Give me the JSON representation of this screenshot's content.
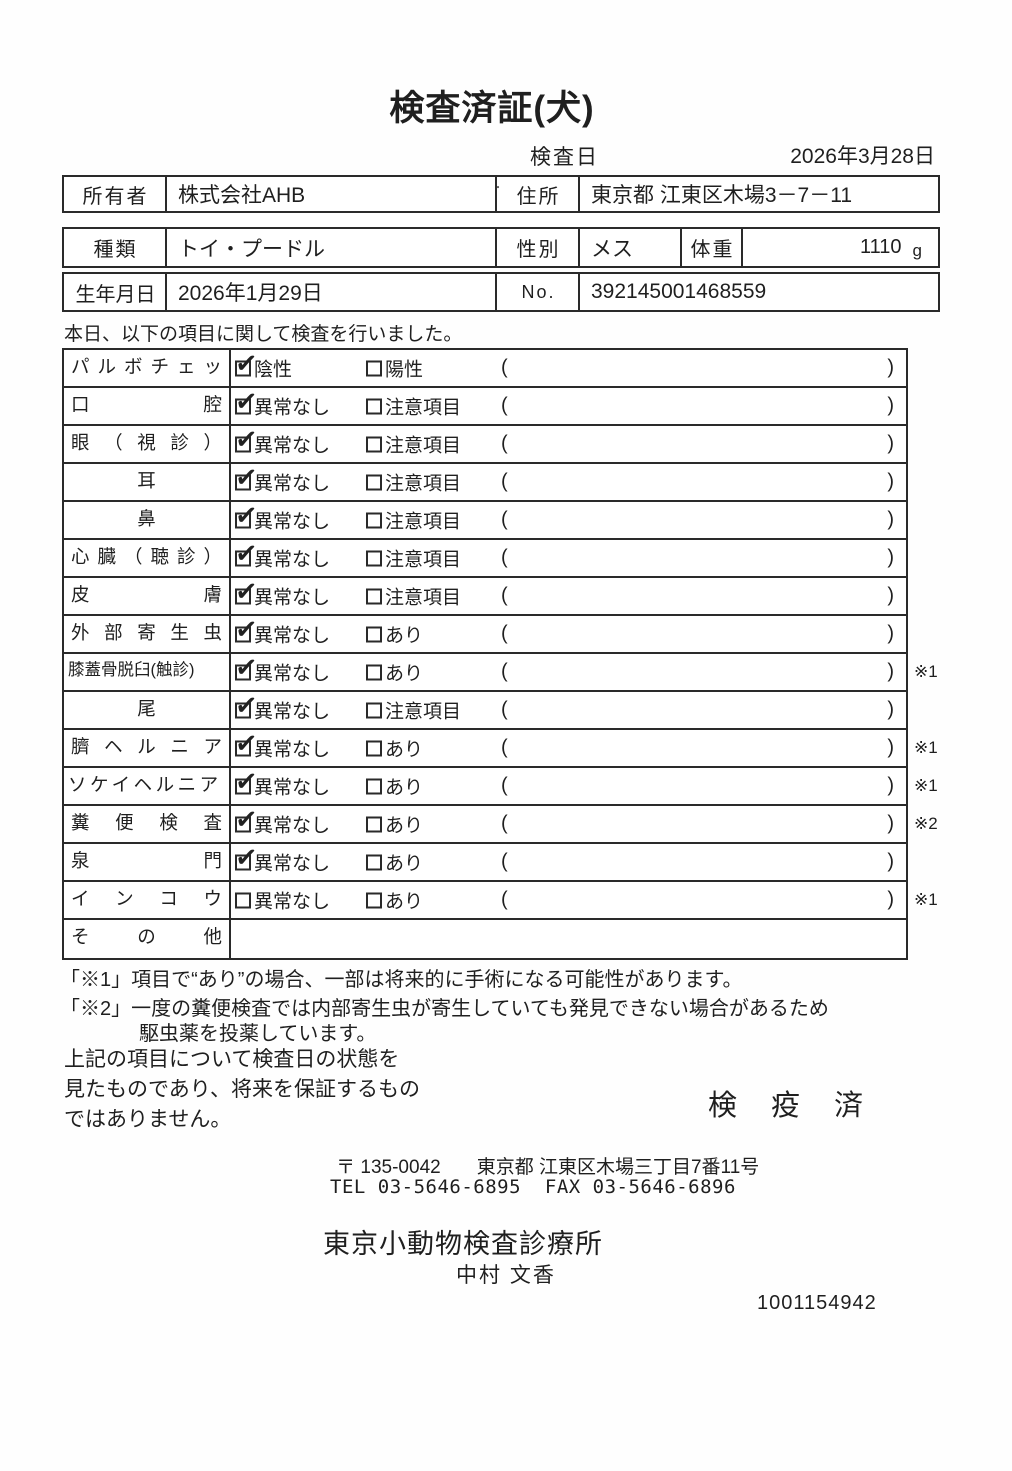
{
  "colors": {
    "ink": "#1f1f1f",
    "border": "#2a2a2a"
  },
  "title": "検査済証(犬)",
  "exam_date": {
    "label": "検査日",
    "value": "2026年3月28日"
  },
  "owner_box": {
    "owner_label": "所有者",
    "owner_value": "株式会社AHB",
    "owner_mark": "・",
    "address_label": "住所",
    "address_value": "東京都 江東区木場3－7－11"
  },
  "info_box": {
    "breed_label": "種類",
    "breed_value": "トイ・プードル",
    "sex_label": "性別",
    "sex_value": "メス",
    "weight_label": "体重",
    "weight_value": "1110",
    "weight_unit": "g"
  },
  "birth_box": {
    "birth_label": "生年月日",
    "birth_value": "2026年1月29日",
    "no_label": "No.",
    "no_value": "392145001468559"
  },
  "intro": "本日、以下の項目に関して検査を行いました。",
  "table": {
    "paren_open": "(",
    "paren_close": ")",
    "rows": [
      {
        "label": "パ ル ボ チ ェ ッ ク",
        "opt1": "陰性",
        "opt2": "陽性",
        "c1": true,
        "c2": false,
        "note": ""
      },
      {
        "label": "口 腔",
        "opt1": "異常なし",
        "opt2": "注意項目",
        "c1": true,
        "c2": false,
        "note": ""
      },
      {
        "label": "眼 （ 視 診 ）",
        "opt1": "異常なし",
        "opt2": "注意項目",
        "c1": true,
        "c2": false,
        "note": ""
      },
      {
        "label": "耳",
        "opt1": "異常なし",
        "opt2": "注意項目",
        "c1": true,
        "c2": false,
        "note": ""
      },
      {
        "label": "鼻",
        "opt1": "異常なし",
        "opt2": "注意項目",
        "c1": true,
        "c2": false,
        "note": ""
      },
      {
        "label": "心 臓 （ 聴 診 ）",
        "opt1": "異常なし",
        "opt2": "注意項目",
        "c1": true,
        "c2": false,
        "note": ""
      },
      {
        "label": "皮 膚",
        "opt1": "異常なし",
        "opt2": "注意項目",
        "c1": true,
        "c2": false,
        "note": ""
      },
      {
        "label": "外 部 寄 生 虫",
        "opt1": "異常なし",
        "opt2": "あり",
        "c1": true,
        "c2": false,
        "note": ""
      },
      {
        "label": "膝蓋骨脱臼(触診)",
        "opt1": "異常なし",
        "opt2": "あり",
        "c1": true,
        "c2": false,
        "note": "※1"
      },
      {
        "label": "尾",
        "opt1": "異常なし",
        "opt2": "注意項目",
        "c1": true,
        "c2": false,
        "note": ""
      },
      {
        "label": "臍 ヘ ル ニ ア",
        "opt1": "異常なし",
        "opt2": "あり",
        "c1": true,
        "c2": false,
        "note": "※1"
      },
      {
        "label": "ソケイヘルニア",
        "opt1": "異常なし",
        "opt2": "あり",
        "c1": true,
        "c2": false,
        "note": "※1"
      },
      {
        "label": "糞 便 検 査",
        "opt1": "異常なし",
        "opt2": "あり",
        "c1": true,
        "c2": false,
        "note": "※2"
      },
      {
        "label": "泉 門",
        "opt1": "異常なし",
        "opt2": "あり",
        "c1": true,
        "c2": false,
        "note": ""
      },
      {
        "label": "イ ン コ ウ",
        "opt1": "異常なし",
        "opt2": "あり",
        "c1": false,
        "c2": false,
        "note": "※1"
      },
      {
        "label": "そ の 他"
      }
    ]
  },
  "footnotes": {
    "note1": "「※1」項目で“あり”の場合、一部は将来的に手術になる可能性があります。",
    "note2": "「※2」一度の糞便検査では内部寄生虫が寄生していても発見できない場合があるため",
    "note2_cont": "駆虫薬を投薬しています。"
  },
  "footer": {
    "disclaimer": "上記の項目について検査日の状態を\n見たものであり、将来を保証するもの\nではありません。",
    "quarantine_stamp": "検 疫 済",
    "postal_code": "〒 135-0042",
    "clinic_address": "東京都 江東区木場三丁目7番11号",
    "tel_fax": "TEL 03-5646-6895  FAX 03-5646-6896",
    "clinic_name": "東京小動物検査診療所",
    "examiner_name": "中村  文香",
    "serial_number": "1001154942"
  }
}
